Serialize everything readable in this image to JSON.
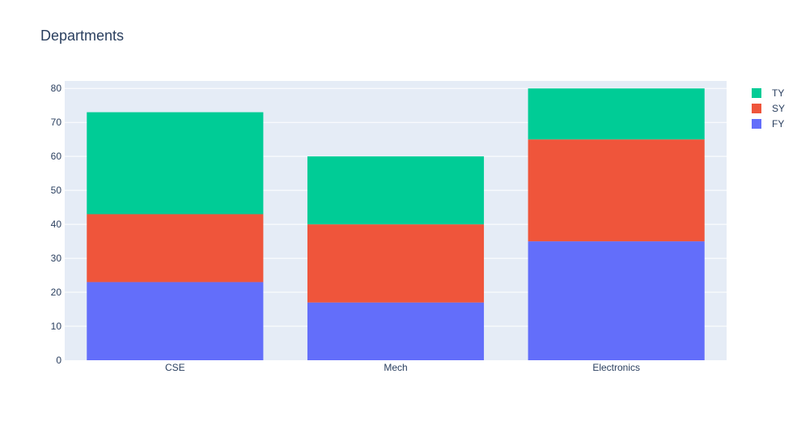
{
  "chart_data": {
    "type": "bar",
    "barmode": "stack",
    "title": "Departments",
    "categories": [
      "CSE",
      "Mech",
      "Electronics"
    ],
    "series": [
      {
        "name": "FY",
        "values": [
          23,
          17,
          35
        ],
        "color": "#636efa"
      },
      {
        "name": "SY",
        "values": [
          20,
          23,
          30
        ],
        "color": "#ef553b"
      },
      {
        "name": "TY",
        "values": [
          30,
          20,
          15
        ],
        "color": "#00cc96"
      }
    ],
    "ylim": [
      0,
      80
    ],
    "yticks": [
      "0",
      "10",
      "20",
      "30",
      "40",
      "50",
      "60",
      "70",
      "80"
    ],
    "legend_order": [
      "TY",
      "SY",
      "FY"
    ],
    "legend_position": "top-right",
    "grid": true,
    "plot_background": "#e5ecf6",
    "gridline_color": "#ffffff"
  }
}
